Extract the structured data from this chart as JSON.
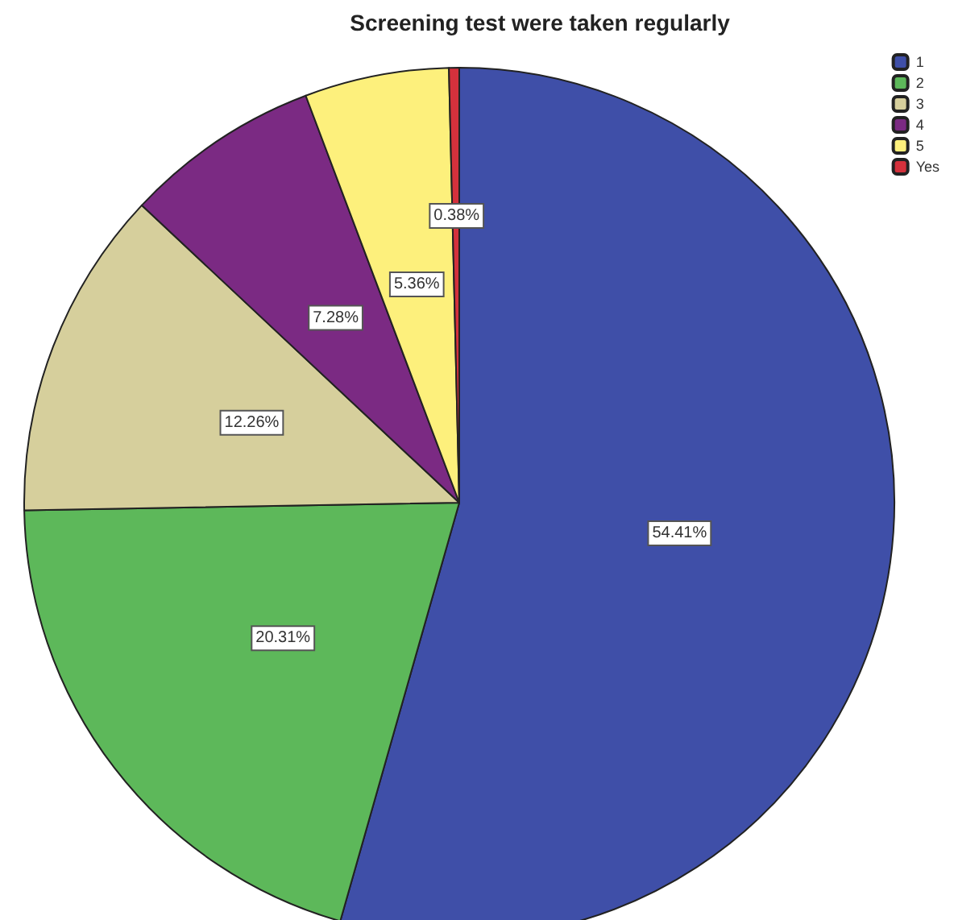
{
  "chart_data": {
    "type": "pie",
    "title": "Screening test were taken regularly",
    "categories": [
      "1",
      "2",
      "3",
      "4",
      "5",
      "Yes"
    ],
    "values": [
      54.41,
      20.31,
      12.26,
      7.28,
      5.36,
      0.38
    ],
    "colors": [
      "#3f4fa8",
      "#5db85a",
      "#d6cf9c",
      "#7b2a83",
      "#fdf07c",
      "#d4313c"
    ],
    "value_labels": [
      "54.41%",
      "20.31%",
      "12.26%",
      "7.28%",
      "5.36%",
      "0.38%"
    ],
    "legend": "top right"
  }
}
